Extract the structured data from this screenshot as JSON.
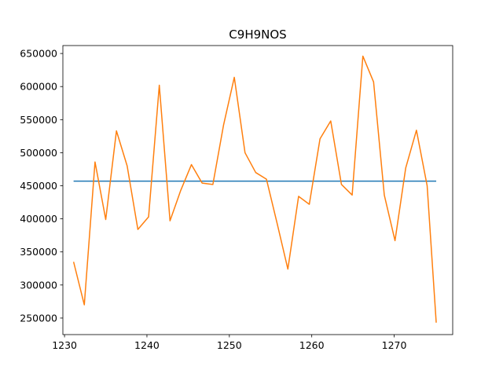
{
  "chart_data": {
    "type": "line",
    "title": "C9H9NOS",
    "xlabel": "",
    "ylabel": "",
    "xlim": [
      1229.8,
      1277.1
    ],
    "ylim": [
      225000,
      662000
    ],
    "x_ticks": [
      1230,
      1240,
      1250,
      1260,
      1270
    ],
    "y_ticks": [
      250000,
      300000,
      350000,
      400000,
      450000,
      500000,
      550000,
      600000,
      650000
    ],
    "x_tick_labels": [
      "1230",
      "1240",
      "1250",
      "1260",
      "1270"
    ],
    "y_tick_labels": [
      "250000",
      "300000",
      "350000",
      "400000",
      "450000",
      "500000",
      "550000",
      "600000",
      "650000"
    ],
    "grid": false,
    "series": [
      {
        "color": "#1f77b4",
        "x": [
          1231.1,
          1275.1
        ],
        "y": [
          457000,
          457000
        ]
      },
      {
        "color": "#ff7f0e",
        "x": [
          1231.1,
          1232.4,
          1233.7,
          1235.0,
          1236.3,
          1237.6,
          1238.9,
          1240.2,
          1241.5,
          1242.8,
          1244.1,
          1245.4,
          1246.7,
          1248.0,
          1249.3,
          1250.6,
          1251.9,
          1253.2,
          1254.5,
          1255.8,
          1257.1,
          1258.4,
          1259.7,
          1261.0,
          1262.3,
          1263.6,
          1264.9,
          1266.2,
          1267.5,
          1268.8,
          1270.1,
          1271.4,
          1272.7,
          1274.0,
          1275.1
        ],
        "y": [
          335000,
          270000,
          486000,
          399000,
          533000,
          480000,
          384000,
          403000,
          602000,
          397000,
          443000,
          482000,
          454000,
          452000,
          542000,
          614000,
          500000,
          470000,
          460000,
          393000,
          324000,
          434000,
          422000,
          521000,
          548000,
          452000,
          436000,
          646000,
          607000,
          436000,
          367000,
          477000,
          534000,
          450000,
          243000
        ]
      }
    ]
  }
}
